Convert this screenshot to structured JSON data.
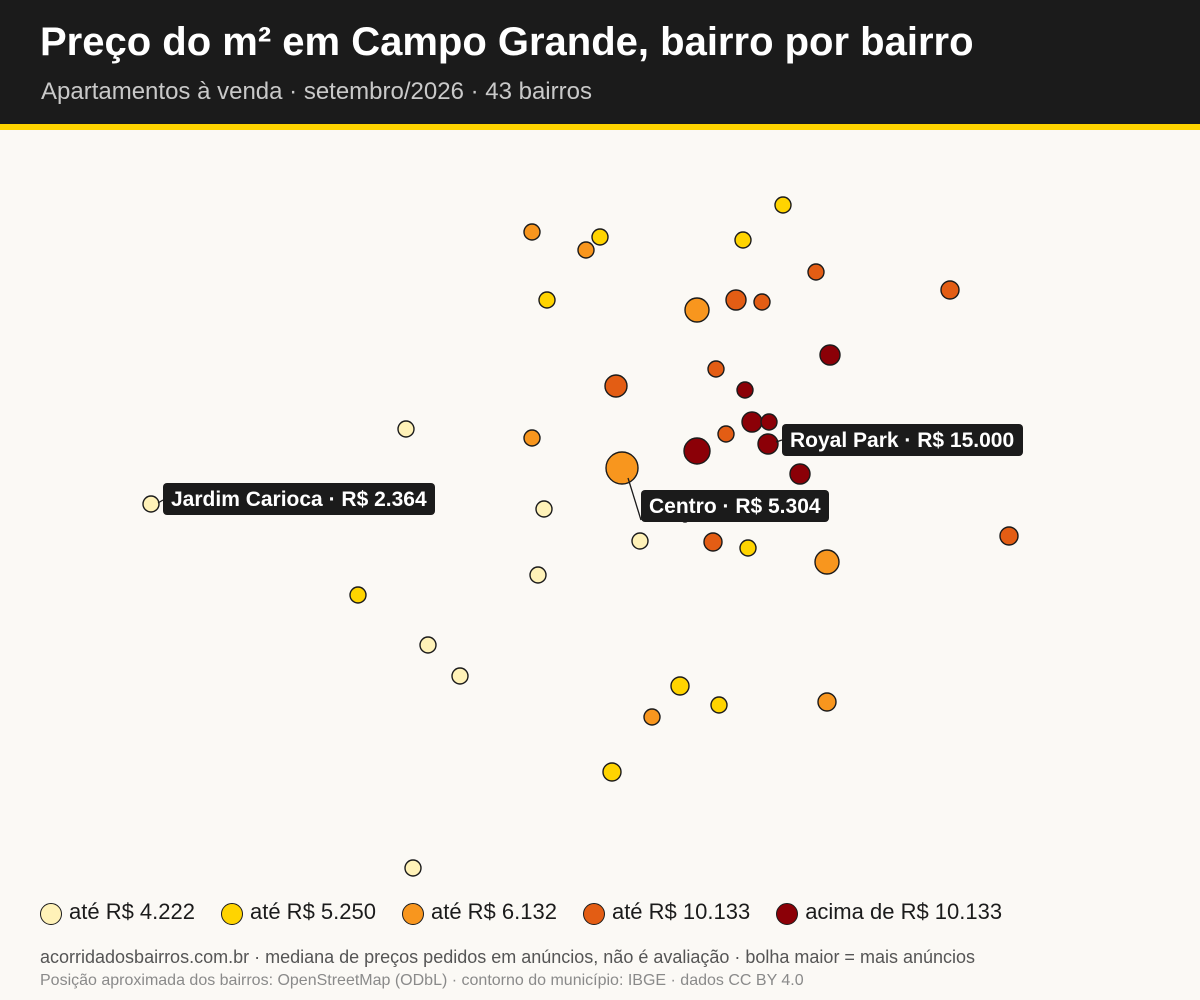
{
  "header": {
    "title": "Preço do m² em Campo Grande, bairro por bairro",
    "subtitle": "Apartamentos à venda · setembro/2026 · 43 bairros"
  },
  "colors": {
    "header_bg": "#1b1b1b",
    "accent": "#ffd400",
    "background": "#fbf9f5"
  },
  "legend": [
    {
      "label": "até R$ 4.222",
      "color": "#fff2b8"
    },
    {
      "label": "até R$ 5.250",
      "color": "#ffd400"
    },
    {
      "label": "até R$ 6.132",
      "color": "#f8961e"
    },
    {
      "label": "até R$ 10.133",
      "color": "#e35d14"
    },
    {
      "label": "acima de R$ 10.133",
      "color": "#8b0007"
    }
  ],
  "callouts": [
    {
      "label": "Royal Park · R$ 15.000"
    },
    {
      "label": "Centro · R$ 5.304"
    },
    {
      "label": "Jardim Carioca · R$ 2.364"
    }
  ],
  "footer": {
    "note": "acorridadosbairros.com.br · mediana de preços pedidos em anúncios, não é avaliação · bolha maior = mais anúncios",
    "source": "Posição aproximada dos bairros: OpenStreetMap (ODbL) · contorno do município: IBGE · dados CC BY 4.0"
  }
}
